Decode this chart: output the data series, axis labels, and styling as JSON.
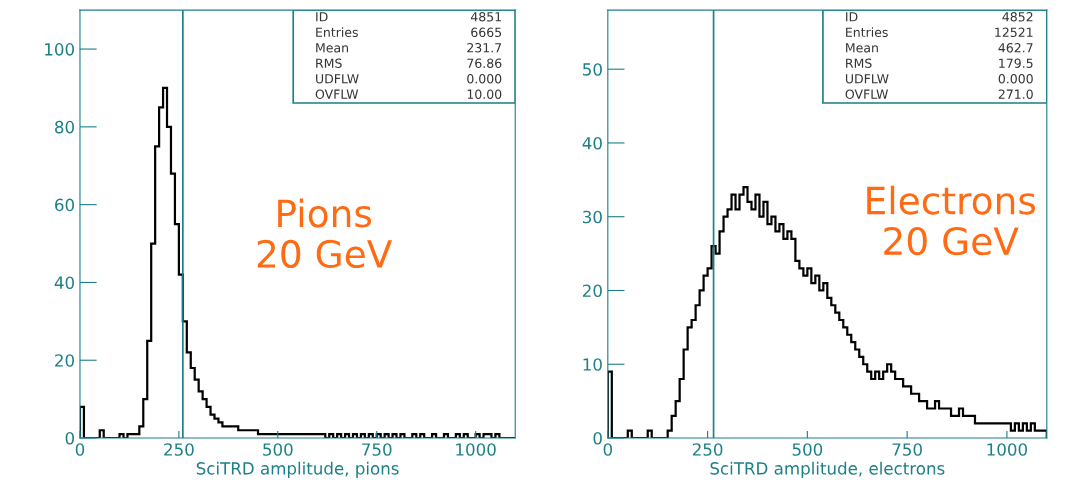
{
  "chart_data": [
    {
      "type": "histogram",
      "xlabel": "SciTRD amplitude, pions",
      "color": "#000000",
      "bins": [
        0,
        10,
        20,
        30,
        40,
        50,
        60,
        70,
        80,
        90,
        100,
        110,
        120,
        130,
        140,
        150,
        160,
        170,
        180,
        190,
        200,
        210,
        220,
        230,
        240,
        250,
        260,
        270,
        280,
        290,
        300,
        310,
        320,
        330,
        340,
        350,
        360,
        370,
        380,
        390,
        400,
        410,
        420,
        430,
        440,
        450,
        460,
        470,
        480,
        490,
        500,
        510,
        520,
        530,
        540,
        550,
        560,
        570,
        580,
        590,
        600,
        610,
        620,
        630,
        640,
        650,
        660,
        670,
        680,
        690,
        700,
        710,
        720,
        730,
        740,
        750,
        760,
        770,
        780,
        790,
        800,
        810,
        820,
        830,
        840,
        850,
        860,
        870,
        880,
        890,
        900,
        910,
        920,
        930,
        940,
        950,
        960,
        970,
        980,
        990,
        1000,
        1010,
        1020,
        1030,
        1040,
        1050,
        1060,
        1070,
        1080,
        1090,
        1100
      ],
      "values": [
        8,
        0,
        0,
        0,
        0,
        2,
        0,
        0,
        0,
        0,
        1,
        0,
        1,
        1,
        1,
        3,
        10,
        25,
        50,
        75,
        85,
        90,
        80,
        68,
        55,
        42,
        30,
        22,
        18,
        15,
        12,
        10,
        8,
        6,
        5,
        4,
        3,
        3,
        3,
        3,
        2,
        2,
        2,
        2,
        2,
        1,
        1,
        1,
        1,
        1,
        1,
        1,
        1,
        1,
        1,
        1,
        1,
        1,
        1,
        1,
        1,
        1,
        0,
        1,
        0,
        1,
        0,
        1,
        0,
        1,
        0,
        1,
        0,
        1,
        0,
        1,
        0,
        1,
        0,
        1,
        0,
        1,
        0,
        0,
        1,
        0,
        1,
        0,
        0,
        1,
        0,
        0,
        1,
        0,
        0,
        1,
        0,
        1,
        0,
        0,
        1,
        0,
        1,
        1,
        0,
        1,
        0,
        0,
        0,
        0
      ],
      "xlim": [
        0,
        1100
      ],
      "ylim": [
        0,
        110
      ],
      "xticks": [
        0,
        250,
        500,
        750,
        1000
      ],
      "yticks": [
        0,
        20,
        40,
        60,
        80,
        100
      ],
      "ref_lines": [
        {
          "axis": "x",
          "value": 260,
          "color": "#1a7f86"
        }
      ],
      "annotations": [
        "Pions\n20 GeV",
        "ID",
        "4851",
        "Entries",
        "6665",
        "Mean",
        "231.7",
        "RMS",
        "76.86",
        "UDFLW",
        "0.000",
        "OVFLW",
        "10.00"
      ]
    },
    {
      "type": "histogram",
      "xlabel": "SciTRD amplitude, electrons",
      "color": "#000000",
      "bins": [
        0,
        10,
        20,
        30,
        40,
        50,
        60,
        70,
        80,
        90,
        100,
        110,
        120,
        130,
        140,
        150,
        160,
        170,
        180,
        190,
        200,
        210,
        220,
        230,
        240,
        250,
        260,
        270,
        280,
        290,
        300,
        310,
        320,
        330,
        340,
        350,
        360,
        370,
        380,
        390,
        400,
        410,
        420,
        430,
        440,
        450,
        460,
        470,
        480,
        490,
        500,
        510,
        520,
        530,
        540,
        550,
        560,
        570,
        580,
        590,
        600,
        610,
        620,
        630,
        640,
        650,
        660,
        670,
        680,
        690,
        700,
        710,
        720,
        730,
        740,
        750,
        760,
        770,
        780,
        790,
        800,
        810,
        820,
        830,
        840,
        850,
        860,
        870,
        880,
        890,
        900,
        910,
        920,
        930,
        940,
        950,
        960,
        970,
        980,
        990,
        1000,
        1010,
        1020,
        1030,
        1040,
        1050,
        1060,
        1070,
        1080,
        1090,
        1100
      ],
      "values": [
        9,
        0,
        0,
        0,
        0,
        1,
        0,
        0,
        0,
        0,
        1,
        0,
        0,
        0,
        0,
        1,
        3,
        5,
        8,
        12,
        15,
        16,
        18,
        20,
        22,
        23,
        26,
        25,
        28,
        30,
        31,
        33,
        31,
        33,
        34,
        32,
        31,
        33,
        30,
        32,
        29,
        30,
        28,
        29,
        27,
        28,
        27,
        24,
        23,
        22,
        23,
        21,
        22,
        20,
        21,
        19,
        18,
        17,
        16,
        15,
        14,
        13,
        12,
        11,
        10,
        9,
        8,
        9,
        8,
        9,
        10,
        9,
        8,
        8,
        7,
        7,
        6,
        6,
        5,
        5,
        4,
        4,
        5,
        4,
        4,
        4,
        3,
        3,
        4,
        3,
        3,
        3,
        2,
        2,
        2,
        2,
        2,
        2,
        2,
        2,
        2,
        1,
        2,
        1,
        2,
        1,
        2,
        1,
        1,
        1
      ],
      "xlim": [
        0,
        1100
      ],
      "ylim": [
        0,
        58
      ],
      "xticks": [
        0,
        250,
        500,
        750,
        1000
      ],
      "yticks": [
        0,
        10,
        20,
        30,
        40,
        50
      ],
      "ref_lines": [
        {
          "axis": "x",
          "value": 265,
          "color": "#1a7f86"
        }
      ],
      "annotations": [
        "Electrons\n20 GeV",
        "ID",
        "4852",
        "Entries",
        "12521",
        "Mean",
        "462.7",
        "RMS",
        "179.5",
        "UDFLW",
        "0.000",
        "OVFLW",
        "271.0"
      ]
    }
  ]
}
